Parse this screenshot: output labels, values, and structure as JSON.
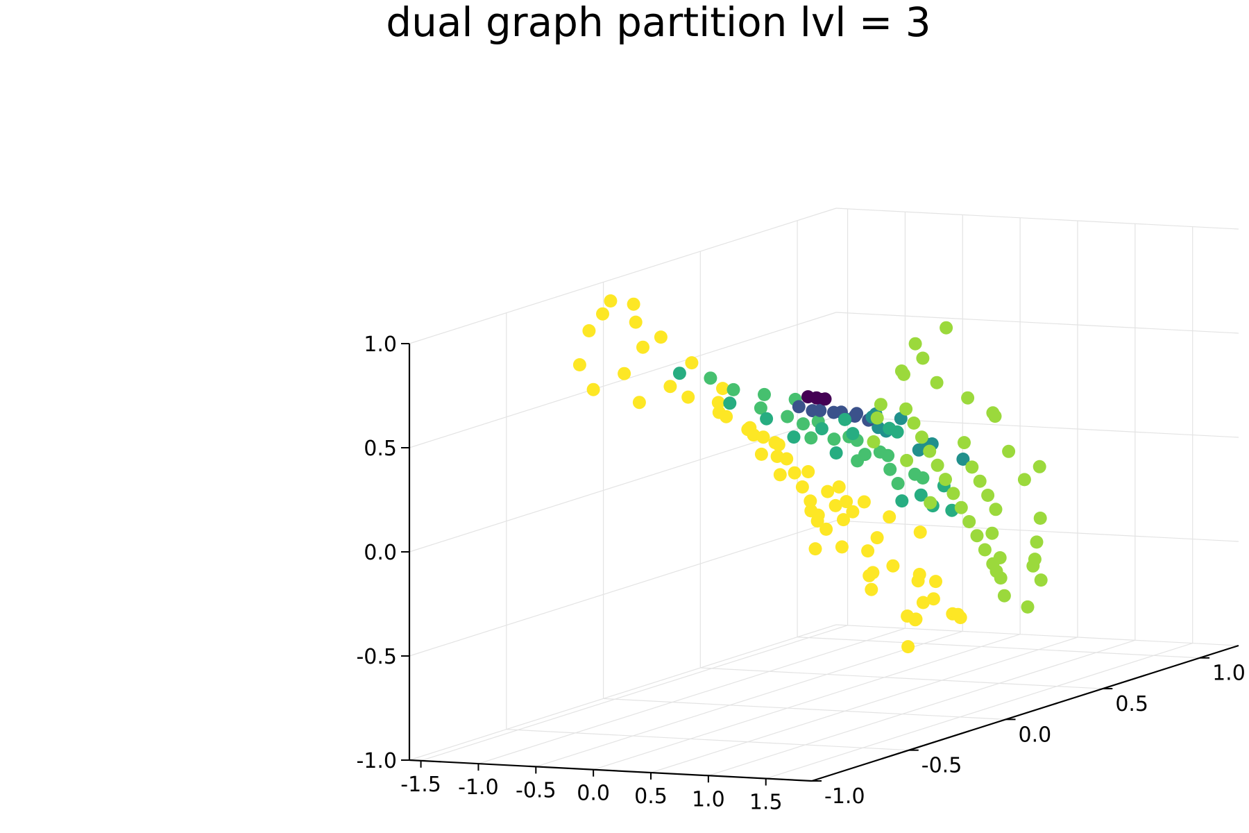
{
  "chart_data": {
    "type": "scatter",
    "title": "dual graph partition lvl = 3",
    "xlabel": "",
    "ylabel": "",
    "zlabel": "",
    "projection": "3d",
    "grid": true,
    "legend": "none",
    "xlim": [
      -1.6,
      1.9
    ],
    "ylim": [
      -1.0,
      1.2
    ],
    "zlim": [
      -1.0,
      1.0
    ],
    "x_ticks": [
      -1.5,
      -1.0,
      -0.5,
      0.0,
      0.5,
      1.0,
      1.5
    ],
    "x_tick_labels": [
      "-1.5",
      "-1.0",
      "-0.5",
      "0.0",
      "0.5",
      "1.0",
      "1.5"
    ],
    "y_ticks": [
      -1.0,
      -0.5,
      0.0,
      0.5,
      1.0
    ],
    "y_tick_labels": [
      "-1.0",
      "-0.5",
      "0.0",
      "0.5",
      "1.0"
    ],
    "z_ticks": [
      -1.0,
      -0.5,
      0.0,
      0.5,
      1.0
    ],
    "z_tick_labels": [
      "-1.0",
      "-0.5",
      "0.0",
      "0.5",
      "1.0"
    ],
    "colormap": [
      "#440154",
      "#3b528b",
      "#21908c",
      "#27ad81",
      "#46c06f",
      "#9bd93c",
      "#fde725"
    ],
    "series": [
      {
        "color": "#fde725",
        "points": [
          [
            -1.2,
            -0.2,
            0.98
          ],
          [
            -1.1,
            -0.3,
            0.95
          ],
          [
            -1.0,
            -0.2,
            0.97
          ],
          [
            -1.05,
            -0.4,
            0.9
          ],
          [
            -1.15,
            -0.1,
            0.85
          ],
          [
            -1.3,
            -0.3,
            0.7
          ],
          [
            -1.25,
            -0.1,
            0.6
          ],
          [
            -1.1,
            0.0,
            0.75
          ],
          [
            -1.0,
            0.1,
            0.6
          ],
          [
            -0.95,
            -0.2,
            0.5
          ],
          [
            -1.2,
            0.2,
            0.4
          ],
          [
            -1.1,
            0.3,
            0.3
          ],
          [
            -1.0,
            0.4,
            0.2
          ],
          [
            -0.95,
            0.5,
            0.1
          ],
          [
            -1.1,
            0.6,
            0.0
          ],
          [
            -1.0,
            0.7,
            -0.1
          ],
          [
            -0.9,
            0.8,
            -0.2
          ],
          [
            -0.85,
            0.9,
            -0.3
          ],
          [
            -0.8,
            1.0,
            -0.4
          ],
          [
            -0.7,
            1.1,
            -0.5
          ],
          [
            -0.75,
            0.6,
            -0.3
          ],
          [
            -0.65,
            0.8,
            -0.5
          ],
          [
            -0.6,
            0.9,
            -0.6
          ],
          [
            -0.55,
            1.0,
            -0.7
          ],
          [
            -0.5,
            1.05,
            -0.8
          ],
          [
            -0.4,
            0.9,
            -0.85
          ],
          [
            -0.35,
            1.1,
            -0.9
          ],
          [
            -0.3,
            0.8,
            -0.95
          ],
          [
            -0.45,
            0.7,
            -0.65
          ],
          [
            -0.6,
            0.5,
            -0.4
          ],
          [
            -0.8,
            0.3,
            0.2
          ],
          [
            -0.7,
            0.1,
            0.35
          ],
          [
            -0.6,
            0.0,
            0.45
          ],
          [
            -0.85,
            -0.1,
            0.55
          ],
          [
            -0.75,
            -0.3,
            0.8
          ],
          [
            -0.9,
            0.2,
            0.45
          ],
          [
            -0.5,
            0.6,
            -0.2
          ],
          [
            -0.4,
            0.7,
            -0.4
          ],
          [
            -0.3,
            0.6,
            -0.55
          ],
          [
            -0.2,
            0.8,
            -0.6
          ],
          [
            -0.1,
            0.5,
            -0.5
          ],
          [
            -0.2,
            0.4,
            -0.35
          ],
          [
            0.0,
            0.7,
            -0.7
          ],
          [
            0.1,
            0.6,
            -0.75
          ],
          [
            0.2,
            0.5,
            -0.7
          ],
          [
            -0.3,
            0.3,
            -0.15
          ],
          [
            -0.4,
            0.2,
            0.05
          ],
          [
            0.0,
            0.2,
            -0.2
          ],
          [
            0.1,
            0.1,
            -0.1
          ],
          [
            0.2,
            0.0,
            0.0
          ],
          [
            0.3,
            -0.1,
            0.1
          ],
          [
            0.4,
            -0.2,
            0.2
          ],
          [
            0.5,
            -0.3,
            0.3
          ],
          [
            0.6,
            -0.4,
            0.4
          ],
          [
            0.55,
            -0.45,
            0.45
          ],
          [
            0.5,
            -0.5,
            0.5
          ],
          [
            0.45,
            -0.4,
            0.35
          ],
          [
            0.35,
            0.0,
            0.05
          ],
          [
            0.25,
            0.1,
            -0.05
          ],
          [
            0.15,
            0.2,
            -0.15
          ],
          [
            -1.35,
            -0.2,
            0.55
          ],
          [
            -0.95,
            0.9,
            -0.35
          ],
          [
            -0.65,
            1.15,
            -0.75
          ],
          [
            -0.25,
            1.0,
            -0.85
          ],
          [
            0.05,
            0.85,
            -0.8
          ]
        ]
      },
      {
        "color": "#9bd93c",
        "points": [
          [
            1.45,
            -0.2,
            0.85
          ],
          [
            1.55,
            -0.1,
            0.9
          ],
          [
            1.5,
            -0.3,
            0.75
          ],
          [
            1.35,
            -0.2,
            0.7
          ],
          [
            1.3,
            0.0,
            0.6
          ],
          [
            1.2,
            -0.1,
            0.5
          ],
          [
            1.1,
            0.0,
            0.4
          ],
          [
            1.0,
            0.1,
            0.3
          ],
          [
            0.9,
            0.2,
            0.2
          ],
          [
            0.8,
            0.3,
            0.1
          ],
          [
            0.7,
            0.4,
            0.0
          ],
          [
            0.6,
            0.5,
            -0.1
          ],
          [
            0.5,
            0.6,
            -0.2
          ],
          [
            0.4,
            0.7,
            -0.3
          ],
          [
            0.3,
            0.8,
            -0.4
          ],
          [
            0.2,
            0.9,
            -0.5
          ],
          [
            0.1,
            1.0,
            -0.6
          ],
          [
            0.0,
            1.1,
            -0.7
          ],
          [
            0.2,
            1.0,
            -0.75
          ],
          [
            0.3,
            0.9,
            -0.6
          ],
          [
            0.5,
            0.8,
            -0.5
          ],
          [
            0.6,
            0.7,
            -0.35
          ],
          [
            0.8,
            0.6,
            -0.2
          ],
          [
            0.9,
            0.5,
            -0.1
          ],
          [
            1.0,
            0.4,
            0.0
          ],
          [
            1.1,
            0.3,
            0.1
          ],
          [
            1.2,
            0.2,
            0.25
          ],
          [
            1.3,
            0.3,
            0.35
          ],
          [
            1.4,
            0.1,
            0.5
          ],
          [
            1.25,
            0.4,
            0.15
          ],
          [
            1.05,
            0.6,
            -0.05
          ],
          [
            0.85,
            0.8,
            -0.3
          ],
          [
            0.65,
            0.9,
            -0.45
          ],
          [
            0.45,
            1.0,
            -0.6
          ],
          [
            0.35,
            1.1,
            -0.7
          ],
          [
            1.6,
            -0.25,
            0.8
          ],
          [
            1.15,
            -0.2,
            0.55
          ],
          [
            0.95,
            -0.1,
            0.45
          ],
          [
            0.75,
            0.0,
            0.3
          ],
          [
            1.35,
            0.5,
            0.05
          ],
          [
            1.45,
            0.2,
            0.4
          ],
          [
            0.55,
            0.95,
            -0.55
          ],
          [
            0.15,
            1.15,
            -0.85
          ],
          [
            0.4,
            0.5,
            -0.15
          ],
          [
            0.7,
            0.2,
            0.15
          ]
        ]
      },
      {
        "color": "#46c06f",
        "points": [
          [
            -0.3,
            -0.1,
            0.55
          ],
          [
            -0.2,
            0.0,
            0.5
          ],
          [
            -0.1,
            0.1,
            0.45
          ],
          [
            0.0,
            0.0,
            0.4
          ],
          [
            0.1,
            0.1,
            0.35
          ],
          [
            -0.2,
            0.2,
            0.3
          ],
          [
            -0.1,
            0.3,
            0.2
          ],
          [
            0.0,
            0.4,
            0.1
          ],
          [
            0.1,
            0.3,
            0.2
          ],
          [
            0.2,
            0.2,
            0.25
          ],
          [
            -0.4,
            0.1,
            0.4
          ],
          [
            -0.3,
            0.3,
            0.2
          ],
          [
            0.05,
            0.5,
            0.0
          ],
          [
            0.2,
            0.4,
            0.1
          ],
          [
            0.3,
            0.3,
            0.15
          ],
          [
            -0.5,
            -0.1,
            0.6
          ],
          [
            -0.15,
            0.45,
            0.05
          ],
          [
            0.25,
            0.55,
            -0.05
          ],
          [
            0.35,
            0.45,
            0.0
          ],
          [
            -0.05,
            0.6,
            -0.1
          ]
        ]
      },
      {
        "color": "#27ad81",
        "points": [
          [
            -0.6,
            -0.2,
            0.65
          ],
          [
            -0.5,
            0.0,
            0.45
          ],
          [
            -0.35,
            0.1,
            0.35
          ],
          [
            -0.25,
            0.4,
            0.1
          ],
          [
            -0.45,
            0.3,
            0.2
          ],
          [
            0.3,
            0.0,
            0.35
          ],
          [
            0.4,
            0.1,
            0.3
          ],
          [
            0.5,
            0.0,
            0.4
          ],
          [
            0.55,
            0.2,
            0.3
          ],
          [
            0.45,
            0.3,
            0.25
          ],
          [
            0.15,
            0.6,
            -0.15
          ],
          [
            0.35,
            0.6,
            -0.1
          ],
          [
            0.0,
            0.75,
            -0.25
          ],
          [
            -0.1,
            0.65,
            -0.2
          ],
          [
            0.25,
            0.7,
            -0.25
          ]
        ]
      },
      {
        "color": "#21908c",
        "points": [
          [
            0.6,
            0.1,
            0.4
          ],
          [
            0.65,
            0.2,
            0.35
          ],
          [
            0.4,
            0.2,
            0.35
          ],
          [
            0.3,
            0.5,
            0.1
          ],
          [
            0.1,
            0.45,
            0.2
          ],
          [
            0.7,
            0.3,
            0.2
          ],
          [
            0.2,
            0.35,
            0.25
          ],
          [
            0.5,
            0.45,
            0.15
          ],
          [
            0.0,
            0.3,
            0.3
          ],
          [
            0.6,
            0.55,
            0.05
          ]
        ]
      },
      {
        "color": "#3b528b",
        "points": [
          [
            0.1,
            0.0,
            0.45
          ],
          [
            0.2,
            0.05,
            0.42
          ],
          [
            0.3,
            0.1,
            0.4
          ],
          [
            0.15,
            0.15,
            0.38
          ],
          [
            0.25,
            0.2,
            0.35
          ],
          [
            0.05,
            0.1,
            0.4
          ],
          [
            0.35,
            0.15,
            0.38
          ],
          [
            0.2,
            0.3,
            0.3
          ]
        ]
      },
      {
        "color": "#440154",
        "points": [
          [
            0.18,
            0.0,
            0.5
          ],
          [
            0.22,
            0.02,
            0.49
          ],
          [
            0.26,
            0.04,
            0.48
          ],
          [
            0.2,
            0.06,
            0.47
          ]
        ]
      }
    ]
  }
}
